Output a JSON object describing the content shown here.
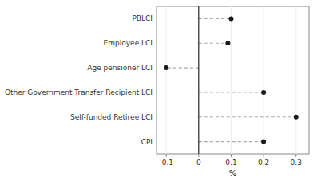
{
  "chart_data": {
    "type": "lollipop",
    "orientation": "horizontal",
    "categories": [
      "PBLCI",
      "Employee LCI",
      "Age pensioner LCI",
      "Other Government Transfer Recipient LCI",
      "Self-funded Retiree LCI",
      "CPI"
    ],
    "values": [
      0.1,
      0.09,
      -0.1,
      0.2,
      0.3,
      0.2
    ],
    "xlim": [
      -0.13,
      0.34
    ],
    "xticks": [
      -0.1,
      0,
      0.1,
      0.2,
      0.3
    ],
    "xlabel": "%",
    "color": "#1a1a1a",
    "marker": "circle",
    "line_style": "dashed"
  }
}
